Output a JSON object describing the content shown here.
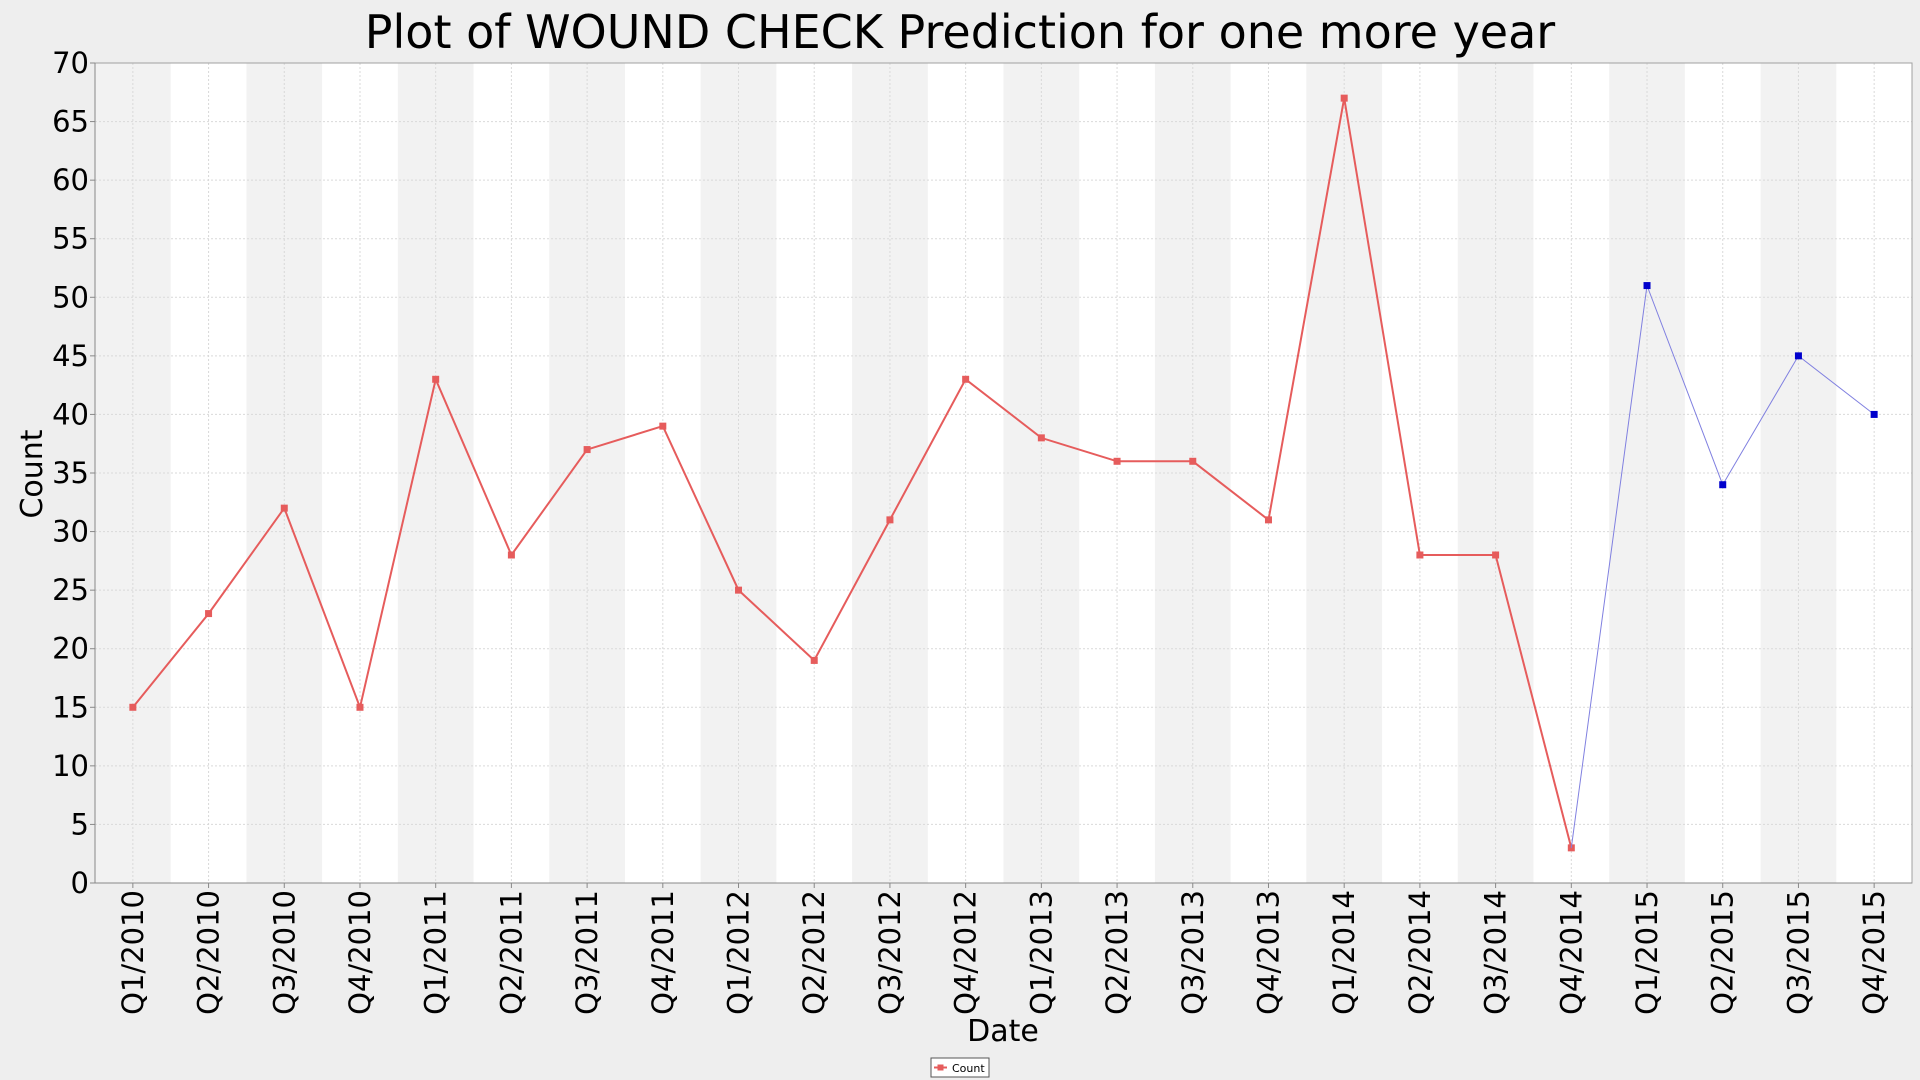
{
  "chart_data": {
    "type": "line",
    "title": "Plot of WOUND CHECK Prediction for one more year",
    "xlabel": "Date",
    "ylabel": "Count",
    "ylim": [
      0,
      70
    ],
    "yticks": [
      "0",
      "5",
      "10",
      "15",
      "20",
      "25",
      "30",
      "35",
      "40",
      "45",
      "50",
      "55",
      "60",
      "65",
      "70"
    ],
    "categories": [
      "Q1/2010",
      "Q2/2010",
      "Q3/2010",
      "Q4/2010",
      "Q1/2011",
      "Q2/2011",
      "Q3/2011",
      "Q4/2011",
      "Q1/2012",
      "Q2/2012",
      "Q3/2012",
      "Q4/2012",
      "Q1/2013",
      "Q2/2013",
      "Q3/2013",
      "Q4/2013",
      "Q1/2014",
      "Q2/2014",
      "Q3/2014",
      "Q4/2014",
      "Q1/2015",
      "Q2/2015",
      "Q3/2015",
      "Q4/2015"
    ],
    "grid": true,
    "alternating_bands": true,
    "legend_position": "bottom-center",
    "series": [
      {
        "name": "Count",
        "color": "#e65c5c",
        "values": [
          15,
          23,
          32,
          15,
          43,
          28,
          37,
          39,
          25,
          19,
          31,
          43,
          38,
          36,
          36,
          31,
          67,
          28,
          28,
          3,
          null,
          null,
          null,
          null
        ]
      },
      {
        "color": "#0000cc",
        "line_color": "#8080e0",
        "values": [
          null,
          null,
          null,
          null,
          null,
          null,
          null,
          null,
          null,
          null,
          null,
          null,
          null,
          null,
          null,
          null,
          null,
          null,
          null,
          3,
          51,
          34,
          45,
          40
        ]
      }
    ]
  },
  "colors": {
    "background": "#eeeeee",
    "plot_background": "#ffffff",
    "band": "#f2f2f2",
    "grid": "#d9d9d9"
  }
}
